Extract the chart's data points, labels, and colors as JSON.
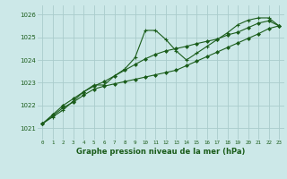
{
  "title": "Graphe pression niveau de la mer (hPa)",
  "bg_color": "#cce8e8",
  "grid_color": "#aacccc",
  "line_color": "#1a5c1a",
  "xlim": [
    -0.5,
    23.5
  ],
  "ylim": [
    1020.5,
    1026.4
  ],
  "yticks": [
    1021,
    1022,
    1023,
    1024,
    1025,
    1026
  ],
  "xticks": [
    0,
    1,
    2,
    3,
    4,
    5,
    6,
    7,
    8,
    9,
    10,
    11,
    12,
    13,
    14,
    15,
    16,
    17,
    18,
    19,
    20,
    21,
    22,
    23
  ],
  "series1": [
    1021.2,
    1021.5,
    1021.8,
    1022.2,
    1022.6,
    1022.9,
    1022.9,
    1023.3,
    1023.6,
    1024.1,
    1025.3,
    1025.3,
    1024.9,
    1024.4,
    1024.0,
    1024.3,
    1024.6,
    1024.9,
    1025.2,
    1025.55,
    1025.75,
    1025.85,
    1025.85,
    1025.5
  ],
  "series2": [
    1021.2,
    1021.6,
    1022.0,
    1022.3,
    1022.6,
    1022.85,
    1023.05,
    1023.3,
    1023.55,
    1023.8,
    1024.05,
    1024.25,
    1024.4,
    1024.5,
    1024.6,
    1024.72,
    1024.82,
    1024.92,
    1025.1,
    1025.22,
    1025.42,
    1025.62,
    1025.72,
    1025.5
  ],
  "series3": [
    1021.2,
    1021.55,
    1021.9,
    1022.15,
    1022.45,
    1022.72,
    1022.85,
    1022.95,
    1023.05,
    1023.15,
    1023.25,
    1023.35,
    1023.45,
    1023.55,
    1023.75,
    1023.95,
    1024.15,
    1024.35,
    1024.55,
    1024.75,
    1024.95,
    1025.15,
    1025.38,
    1025.5
  ]
}
